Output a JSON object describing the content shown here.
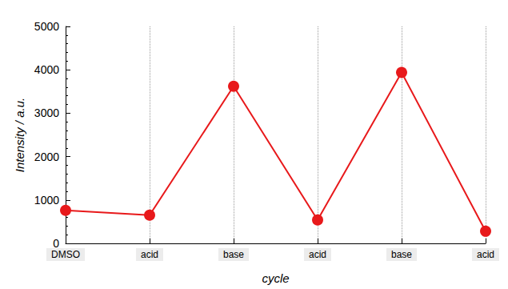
{
  "chart_data": {
    "type": "line",
    "x_label": "cycle",
    "y_label": "Intensity / a.u.",
    "categories": [
      "DMSO",
      "acid",
      "base",
      "acid",
      "base",
      "acid"
    ],
    "values": [
      760,
      650,
      3620,
      540,
      3940,
      280
    ],
    "color": "#e8191b",
    "marker": "circle",
    "line_style": "solid",
    "ylim": [
      0,
      5000
    ],
    "yticks": [
      0,
      1000,
      2000,
      3000,
      4000,
      5000
    ],
    "grid": "x"
  }
}
